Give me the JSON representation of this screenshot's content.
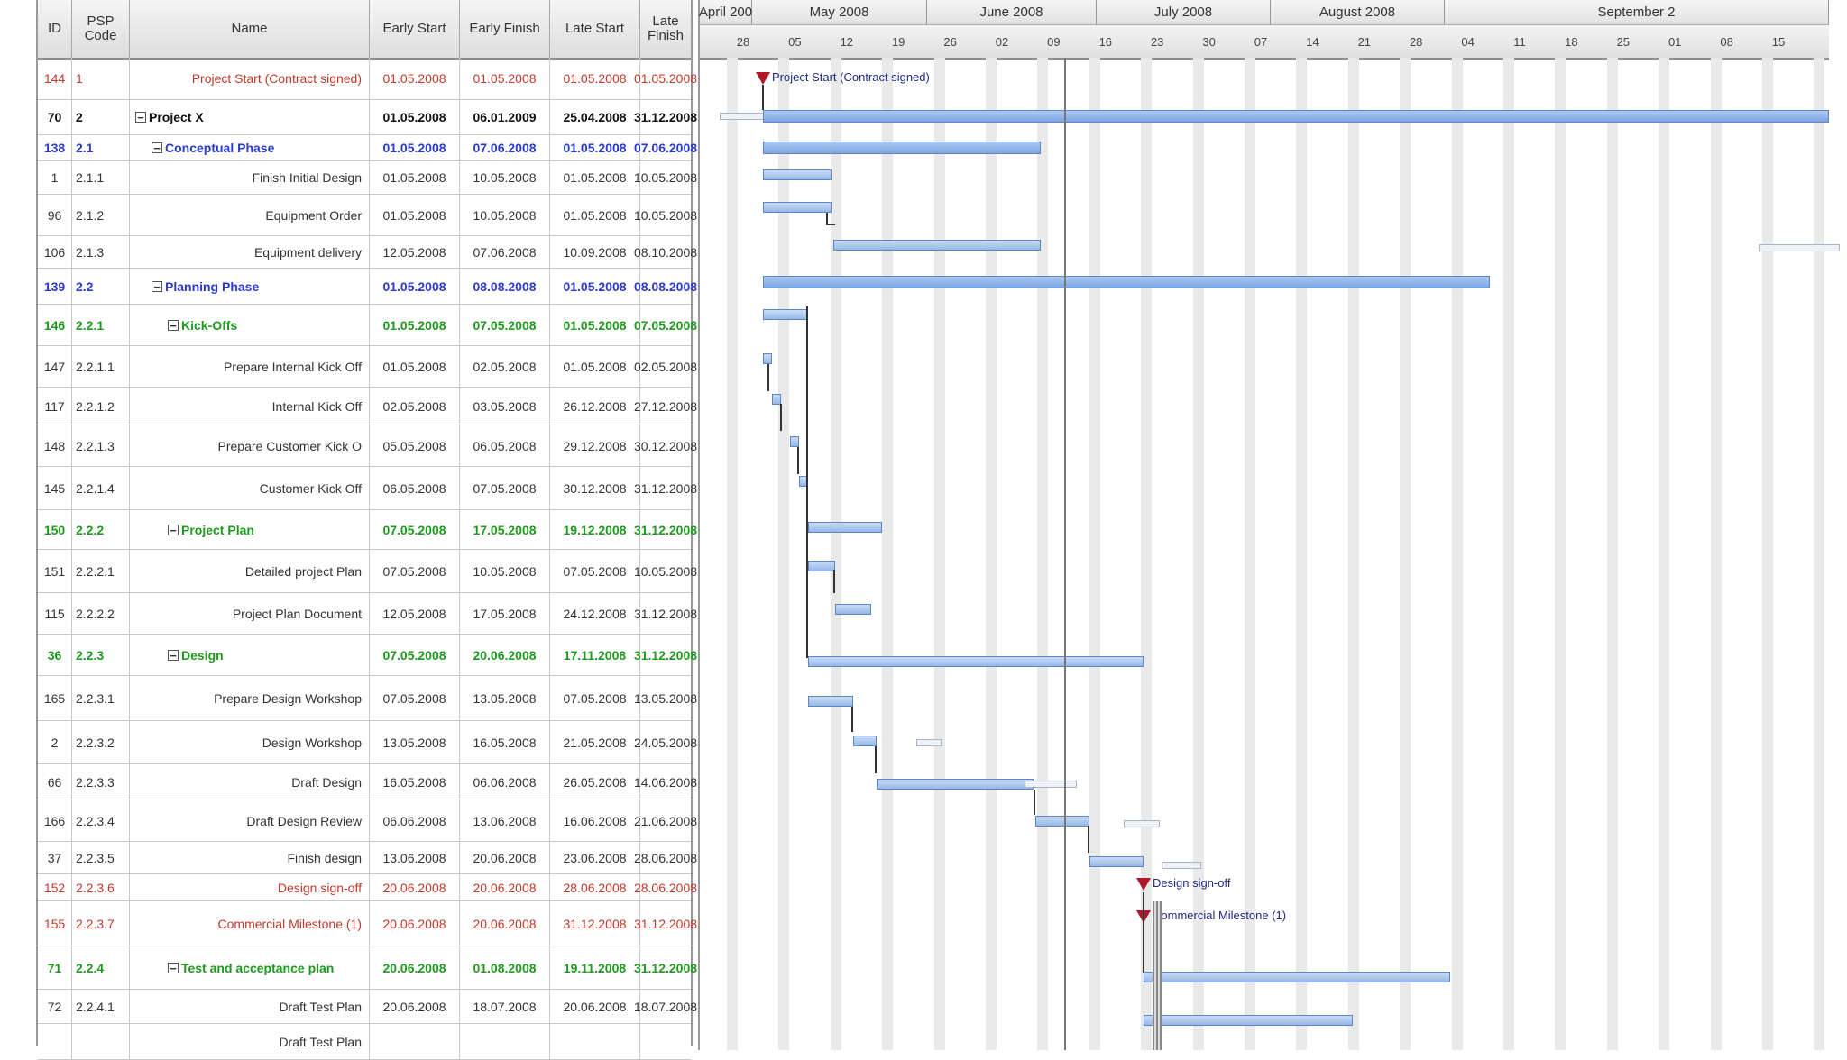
{
  "table": {
    "headers": {
      "id": "ID",
      "psp": "PSP\nCode",
      "name": "Name",
      "early_start": "Early Start",
      "early_finish": "Early Finish",
      "late_start": "Late Start",
      "late_finish": "Late Finish"
    },
    "rows": [
      {
        "id": "144",
        "psp": "1",
        "name": "Project Start (Contract signed)",
        "es": "01.05.2008",
        "ef": "01.05.2008",
        "ls": "01.05.2008",
        "lf": "01.05.2008",
        "style": "milestone",
        "summary": false
      },
      {
        "id": "70",
        "psp": "2",
        "name": "Project X",
        "es": "01.05.2008",
        "ef": "06.01.2009",
        "ls": "25.04.2008",
        "lf": "31.12.2008",
        "style": "project",
        "summary": true
      },
      {
        "id": "138",
        "psp": "2.1",
        "name": "Conceptual Phase",
        "es": "01.05.2008",
        "ef": "07.06.2008",
        "ls": "01.05.2008",
        "lf": "07.06.2008",
        "style": "phase",
        "summary": true
      },
      {
        "id": "1",
        "psp": "2.1.1",
        "name": "Finish Initial Design",
        "es": "01.05.2008",
        "ef": "10.05.2008",
        "ls": "01.05.2008",
        "lf": "10.05.2008",
        "style": "task",
        "summary": false
      },
      {
        "id": "96",
        "psp": "2.1.2",
        "name": "Equipment Order",
        "es": "01.05.2008",
        "ef": "10.05.2008",
        "ls": "01.05.2008",
        "lf": "10.05.2008",
        "style": "task",
        "summary": false
      },
      {
        "id": "106",
        "psp": "2.1.3",
        "name": "Equipment delivery",
        "es": "12.05.2008",
        "ef": "07.06.2008",
        "ls": "10.09.2008",
        "lf": "08.10.2008",
        "style": "task",
        "summary": false
      },
      {
        "id": "139",
        "psp": "2.2",
        "name": "Planning Phase",
        "es": "01.05.2008",
        "ef": "08.08.2008",
        "ls": "01.05.2008",
        "lf": "08.08.2008",
        "style": "phase",
        "summary": true
      },
      {
        "id": "146",
        "psp": "2.2.1",
        "name": "Kick-Offs",
        "es": "01.05.2008",
        "ef": "07.05.2008",
        "ls": "01.05.2008",
        "lf": "07.05.2008",
        "style": "sub",
        "summary": true
      },
      {
        "id": "147",
        "psp": "2.2.1.1",
        "name": "Prepare Internal Kick Off",
        "es": "01.05.2008",
        "ef": "02.05.2008",
        "ls": "01.05.2008",
        "lf": "02.05.2008",
        "style": "task",
        "summary": false
      },
      {
        "id": "117",
        "psp": "2.2.1.2",
        "name": "Internal Kick Off",
        "es": "02.05.2008",
        "ef": "03.05.2008",
        "ls": "26.12.2008",
        "lf": "27.12.2008",
        "style": "task",
        "summary": false
      },
      {
        "id": "148",
        "psp": "2.2.1.3",
        "name": "Prepare Customer Kick O",
        "es": "05.05.2008",
        "ef": "06.05.2008",
        "ls": "29.12.2008",
        "lf": "30.12.2008",
        "style": "task",
        "summary": false
      },
      {
        "id": "145",
        "psp": "2.2.1.4",
        "name": "Customer Kick Off",
        "es": "06.05.2008",
        "ef": "07.05.2008",
        "ls": "30.12.2008",
        "lf": "31.12.2008",
        "style": "task",
        "summary": false
      },
      {
        "id": "150",
        "psp": "2.2.2",
        "name": "Project Plan",
        "es": "07.05.2008",
        "ef": "17.05.2008",
        "ls": "19.12.2008",
        "lf": "31.12.2008",
        "style": "sub",
        "summary": true
      },
      {
        "id": "151",
        "psp": "2.2.2.1",
        "name": "Detailed project Plan",
        "es": "07.05.2008",
        "ef": "10.05.2008",
        "ls": "07.05.2008",
        "lf": "10.05.2008",
        "style": "task",
        "summary": false
      },
      {
        "id": "115",
        "psp": "2.2.2.2",
        "name": "Project Plan Document",
        "es": "12.05.2008",
        "ef": "17.05.2008",
        "ls": "24.12.2008",
        "lf": "31.12.2008",
        "style": "task",
        "summary": false
      },
      {
        "id": "36",
        "psp": "2.2.3",
        "name": "Design",
        "es": "07.05.2008",
        "ef": "20.06.2008",
        "ls": "17.11.2008",
        "lf": "31.12.2008",
        "style": "sub",
        "summary": true
      },
      {
        "id": "165",
        "psp": "2.2.3.1",
        "name": "Prepare Design Workshop",
        "es": "07.05.2008",
        "ef": "13.05.2008",
        "ls": "07.05.2008",
        "lf": "13.05.2008",
        "style": "task",
        "summary": false
      },
      {
        "id": "2",
        "psp": "2.2.3.2",
        "name": "Design Workshop",
        "es": "13.05.2008",
        "ef": "16.05.2008",
        "ls": "21.05.2008",
        "lf": "24.05.2008",
        "style": "task",
        "summary": false
      },
      {
        "id": "66",
        "psp": "2.2.3.3",
        "name": "Draft Design",
        "es": "16.05.2008",
        "ef": "06.06.2008",
        "ls": "26.05.2008",
        "lf": "14.06.2008",
        "style": "task",
        "summary": false
      },
      {
        "id": "166",
        "psp": "2.2.3.4",
        "name": "Draft Design Review",
        "es": "06.06.2008",
        "ef": "13.06.2008",
        "ls": "16.06.2008",
        "lf": "21.06.2008",
        "style": "task",
        "summary": false
      },
      {
        "id": "37",
        "psp": "2.2.3.5",
        "name": "Finish design",
        "es": "13.06.2008",
        "ef": "20.06.2008",
        "ls": "23.06.2008",
        "lf": "28.06.2008",
        "style": "task",
        "summary": false
      },
      {
        "id": "152",
        "psp": "2.2.3.6",
        "name": "Design sign-off",
        "es": "20.06.2008",
        "ef": "20.06.2008",
        "ls": "28.06.2008",
        "lf": "28.06.2008",
        "style": "milestone",
        "summary": false
      },
      {
        "id": "155",
        "psp": "2.2.3.7",
        "name": "Commercial Milestone (1)",
        "es": "20.06.2008",
        "ef": "20.06.2008",
        "ls": "31.12.2008",
        "lf": "31.12.2008",
        "style": "milestone",
        "summary": false
      },
      {
        "id": "71",
        "psp": "2.2.4",
        "name": "Test and acceptance plan",
        "es": "20.06.2008",
        "ef": "01.08.2008",
        "ls": "19.11.2008",
        "lf": "31.12.2008",
        "style": "sub",
        "summary": true
      },
      {
        "id": "72",
        "psp": "2.2.4.1",
        "name": "Draft Test Plan",
        "es": "20.06.2008",
        "ef": "18.07.2008",
        "ls": "20.06.2008",
        "lf": "18.07.2008",
        "style": "task",
        "summary": false
      },
      {
        "id": "",
        "psp": "",
        "name": "Draft Test Plan",
        "es": "",
        "ef": "",
        "ls": "",
        "lf": "",
        "style": "task",
        "summary": false
      }
    ]
  },
  "gantt": {
    "months": [
      "April 200",
      "May 2008",
      "June 2008",
      "July 2008",
      "August 2008",
      "September 2"
    ],
    "days": [
      "28",
      "05",
      "12",
      "19",
      "26",
      "02",
      "09",
      "16",
      "23",
      "30",
      "07",
      "14",
      "21",
      "28",
      "04",
      "11",
      "18",
      "25",
      "01",
      "08",
      "15"
    ],
    "milestone_labels": {
      "project_start": "Project Start (Contract signed)",
      "design_signoff": "Design sign-off",
      "commercial_milestone": "Commercial Milestone (1)"
    }
  }
}
